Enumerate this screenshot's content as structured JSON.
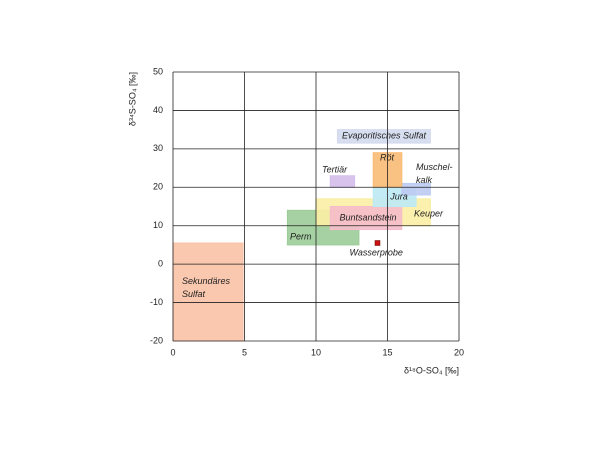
{
  "chart_data": {
    "type": "range",
    "xlabel": "δ¹⁸O-SO₄ [‰]",
    "ylabel": "δ³⁴S-SO₄ [‰]",
    "xlim": [
      0,
      20
    ],
    "xticks": [
      0,
      5,
      10,
      15,
      20
    ],
    "ylim": [
      -20,
      50
    ],
    "yticks": [
      -20,
      -10,
      0,
      10,
      20,
      30,
      40,
      50
    ],
    "grid": true,
    "regions": [
      {
        "name": "Perm",
        "color": "#9ccc98",
        "x": [
          8,
          13
        ],
        "y": [
          5,
          14
        ]
      },
      {
        "name": "Keuper",
        "color": "#fbeea4",
        "x": [
          10,
          18
        ],
        "y": [
          10,
          17
        ]
      },
      {
        "name": "Buntsandstein",
        "color": "#f5bccb",
        "x": [
          11,
          16
        ],
        "y": [
          9,
          15
        ]
      },
      {
        "name": "Jura",
        "color": "#bde9f5",
        "x": [
          14,
          17
        ],
        "y": [
          15,
          20
        ]
      },
      {
        "name": "Muschel-\nkalk",
        "color": "#bccbf2",
        "x": [
          16,
          18
        ],
        "y": [
          18,
          21
        ]
      },
      {
        "name": "Röt",
        "color": "#f9bb74",
        "x": [
          14,
          16
        ],
        "y": [
          20,
          29
        ]
      },
      {
        "name": "Tertiär",
        "color": "#d4bdea",
        "x": [
          11,
          12.7
        ],
        "y": [
          20,
          23
        ]
      },
      {
        "name": "Evaporitisches Sulfat",
        "color": "#d3daee",
        "x": [
          11.5,
          18
        ],
        "y": [
          31.5,
          35
        ]
      },
      {
        "name": "Sekundäres\nSulfat",
        "color": "#f9c2a6",
        "x": [
          0,
          4.9
        ],
        "y": [
          -20,
          5.5
        ]
      }
    ],
    "point": {
      "name": "Wasserprobe",
      "color": "#cc1111",
      "x": 14.3,
      "y": 5.5
    }
  }
}
